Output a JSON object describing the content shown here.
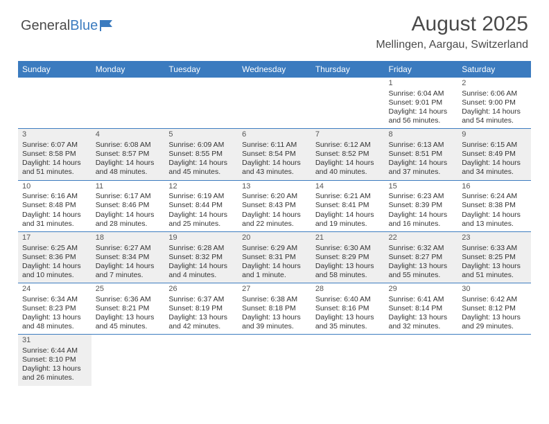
{
  "logo": {
    "part1": "General",
    "part2": "Blue"
  },
  "title": "August 2025",
  "location": "Mellingen, Aargau, Switzerland",
  "colors": {
    "header_bg": "#3b7bbf",
    "header_text": "#ffffff",
    "alt_row_bg": "#efefef",
    "border": "#3b7bbf",
    "text": "#333333"
  },
  "day_headers": [
    "Sunday",
    "Monday",
    "Tuesday",
    "Wednesday",
    "Thursday",
    "Friday",
    "Saturday"
  ],
  "weeks": [
    {
      "alt": false,
      "cells": [
        null,
        null,
        null,
        null,
        null,
        {
          "n": "1",
          "sr": "Sunrise: 6:04 AM",
          "ss": "Sunset: 9:01 PM",
          "d1": "Daylight: 14 hours",
          "d2": "and 56 minutes."
        },
        {
          "n": "2",
          "sr": "Sunrise: 6:06 AM",
          "ss": "Sunset: 9:00 PM",
          "d1": "Daylight: 14 hours",
          "d2": "and 54 minutes."
        }
      ]
    },
    {
      "alt": true,
      "cells": [
        {
          "n": "3",
          "sr": "Sunrise: 6:07 AM",
          "ss": "Sunset: 8:58 PM",
          "d1": "Daylight: 14 hours",
          "d2": "and 51 minutes."
        },
        {
          "n": "4",
          "sr": "Sunrise: 6:08 AM",
          "ss": "Sunset: 8:57 PM",
          "d1": "Daylight: 14 hours",
          "d2": "and 48 minutes."
        },
        {
          "n": "5",
          "sr": "Sunrise: 6:09 AM",
          "ss": "Sunset: 8:55 PM",
          "d1": "Daylight: 14 hours",
          "d2": "and 45 minutes."
        },
        {
          "n": "6",
          "sr": "Sunrise: 6:11 AM",
          "ss": "Sunset: 8:54 PM",
          "d1": "Daylight: 14 hours",
          "d2": "and 43 minutes."
        },
        {
          "n": "7",
          "sr": "Sunrise: 6:12 AM",
          "ss": "Sunset: 8:52 PM",
          "d1": "Daylight: 14 hours",
          "d2": "and 40 minutes."
        },
        {
          "n": "8",
          "sr": "Sunrise: 6:13 AM",
          "ss": "Sunset: 8:51 PM",
          "d1": "Daylight: 14 hours",
          "d2": "and 37 minutes."
        },
        {
          "n": "9",
          "sr": "Sunrise: 6:15 AM",
          "ss": "Sunset: 8:49 PM",
          "d1": "Daylight: 14 hours",
          "d2": "and 34 minutes."
        }
      ]
    },
    {
      "alt": false,
      "cells": [
        {
          "n": "10",
          "sr": "Sunrise: 6:16 AM",
          "ss": "Sunset: 8:48 PM",
          "d1": "Daylight: 14 hours",
          "d2": "and 31 minutes."
        },
        {
          "n": "11",
          "sr": "Sunrise: 6:17 AM",
          "ss": "Sunset: 8:46 PM",
          "d1": "Daylight: 14 hours",
          "d2": "and 28 minutes."
        },
        {
          "n": "12",
          "sr": "Sunrise: 6:19 AM",
          "ss": "Sunset: 8:44 PM",
          "d1": "Daylight: 14 hours",
          "d2": "and 25 minutes."
        },
        {
          "n": "13",
          "sr": "Sunrise: 6:20 AM",
          "ss": "Sunset: 8:43 PM",
          "d1": "Daylight: 14 hours",
          "d2": "and 22 minutes."
        },
        {
          "n": "14",
          "sr": "Sunrise: 6:21 AM",
          "ss": "Sunset: 8:41 PM",
          "d1": "Daylight: 14 hours",
          "d2": "and 19 minutes."
        },
        {
          "n": "15",
          "sr": "Sunrise: 6:23 AM",
          "ss": "Sunset: 8:39 PM",
          "d1": "Daylight: 14 hours",
          "d2": "and 16 minutes."
        },
        {
          "n": "16",
          "sr": "Sunrise: 6:24 AM",
          "ss": "Sunset: 8:38 PM",
          "d1": "Daylight: 14 hours",
          "d2": "and 13 minutes."
        }
      ]
    },
    {
      "alt": true,
      "cells": [
        {
          "n": "17",
          "sr": "Sunrise: 6:25 AM",
          "ss": "Sunset: 8:36 PM",
          "d1": "Daylight: 14 hours",
          "d2": "and 10 minutes."
        },
        {
          "n": "18",
          "sr": "Sunrise: 6:27 AM",
          "ss": "Sunset: 8:34 PM",
          "d1": "Daylight: 14 hours",
          "d2": "and 7 minutes."
        },
        {
          "n": "19",
          "sr": "Sunrise: 6:28 AM",
          "ss": "Sunset: 8:32 PM",
          "d1": "Daylight: 14 hours",
          "d2": "and 4 minutes."
        },
        {
          "n": "20",
          "sr": "Sunrise: 6:29 AM",
          "ss": "Sunset: 8:31 PM",
          "d1": "Daylight: 14 hours",
          "d2": "and 1 minute."
        },
        {
          "n": "21",
          "sr": "Sunrise: 6:30 AM",
          "ss": "Sunset: 8:29 PM",
          "d1": "Daylight: 13 hours",
          "d2": "and 58 minutes."
        },
        {
          "n": "22",
          "sr": "Sunrise: 6:32 AM",
          "ss": "Sunset: 8:27 PM",
          "d1": "Daylight: 13 hours",
          "d2": "and 55 minutes."
        },
        {
          "n": "23",
          "sr": "Sunrise: 6:33 AM",
          "ss": "Sunset: 8:25 PM",
          "d1": "Daylight: 13 hours",
          "d2": "and 51 minutes."
        }
      ]
    },
    {
      "alt": false,
      "cells": [
        {
          "n": "24",
          "sr": "Sunrise: 6:34 AM",
          "ss": "Sunset: 8:23 PM",
          "d1": "Daylight: 13 hours",
          "d2": "and 48 minutes."
        },
        {
          "n": "25",
          "sr": "Sunrise: 6:36 AM",
          "ss": "Sunset: 8:21 PM",
          "d1": "Daylight: 13 hours",
          "d2": "and 45 minutes."
        },
        {
          "n": "26",
          "sr": "Sunrise: 6:37 AM",
          "ss": "Sunset: 8:19 PM",
          "d1": "Daylight: 13 hours",
          "d2": "and 42 minutes."
        },
        {
          "n": "27",
          "sr": "Sunrise: 6:38 AM",
          "ss": "Sunset: 8:18 PM",
          "d1": "Daylight: 13 hours",
          "d2": "and 39 minutes."
        },
        {
          "n": "28",
          "sr": "Sunrise: 6:40 AM",
          "ss": "Sunset: 8:16 PM",
          "d1": "Daylight: 13 hours",
          "d2": "and 35 minutes."
        },
        {
          "n": "29",
          "sr": "Sunrise: 6:41 AM",
          "ss": "Sunset: 8:14 PM",
          "d1": "Daylight: 13 hours",
          "d2": "and 32 minutes."
        },
        {
          "n": "30",
          "sr": "Sunrise: 6:42 AM",
          "ss": "Sunset: 8:12 PM",
          "d1": "Daylight: 13 hours",
          "d2": "and 29 minutes."
        }
      ]
    },
    {
      "alt": true,
      "last": true,
      "cells": [
        {
          "n": "31",
          "sr": "Sunrise: 6:44 AM",
          "ss": "Sunset: 8:10 PM",
          "d1": "Daylight: 13 hours",
          "d2": "and 26 minutes."
        },
        null,
        null,
        null,
        null,
        null,
        null
      ]
    }
  ]
}
